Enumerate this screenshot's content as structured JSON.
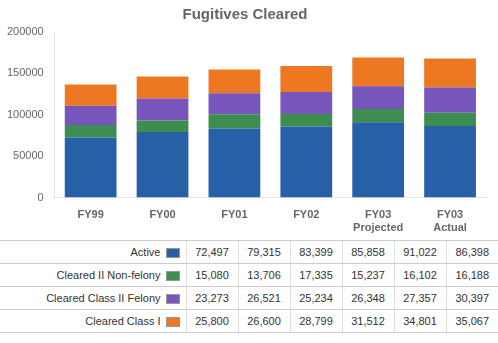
{
  "chart_data": {
    "type": "bar",
    "title": "Fugitives Cleared",
    "categories": [
      "FY99",
      "FY00",
      "FY01",
      "FY02",
      "FY03\nProjected",
      "FY03\nActual"
    ],
    "series": [
      {
        "name": "Active",
        "color": "#2860a8",
        "values": [
          72497,
          79315,
          83399,
          85858,
          91022,
          86398
        ],
        "value_labels": [
          "72,497",
          "79,315",
          "83,399",
          "85,858",
          "91,022",
          "86,398"
        ]
      },
      {
        "name": "Cleared II Non-felony",
        "color": "#3d8c50",
        "values": [
          15080,
          13706,
          17335,
          15237,
          16102,
          16188
        ],
        "value_labels": [
          "15,080",
          "13,706",
          "17,335",
          "15,237",
          "16,102",
          "16,188"
        ]
      },
      {
        "name": "Cleared Class II Felony",
        "color": "#7755bb",
        "values": [
          23273,
          26521,
          25234,
          26348,
          27357,
          30397
        ],
        "value_labels": [
          "23,273",
          "26,521",
          "25,234",
          "26,348",
          "27,357",
          "30,397"
        ]
      },
      {
        "name": "Cleared Class I",
        "color": "#ee7722",
        "values": [
          25800,
          26600,
          28799,
          31512,
          34801,
          35067
        ],
        "value_labels": [
          "25,800",
          "26,600",
          "28,799",
          "31,512",
          "34,801",
          "35,067"
        ]
      }
    ],
    "stacked": true,
    "ylim": [
      0,
      200000
    ],
    "yticks": [
      0,
      50000,
      100000,
      150000,
      200000
    ],
    "grid": false
  }
}
